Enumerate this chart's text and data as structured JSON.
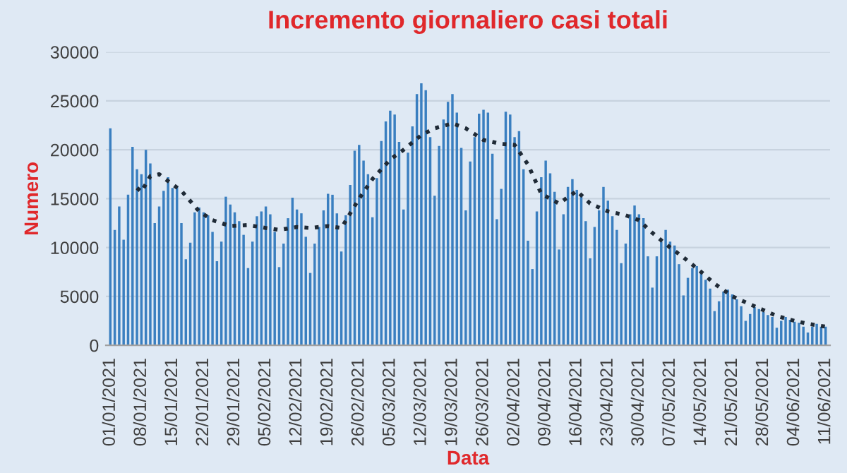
{
  "chart_data": {
    "type": "bar",
    "title": "Incremento giornaliero casi totali",
    "xlabel": "Data",
    "ylabel": "Numero",
    "x": [
      "2021-01-01",
      "2021-01-02",
      "2021-01-03",
      "2021-01-04",
      "2021-01-05",
      "2021-01-06",
      "2021-01-07",
      "2021-01-08",
      "2021-01-09",
      "2021-01-10",
      "2021-01-11",
      "2021-01-12",
      "2021-01-13",
      "2021-01-14",
      "2021-01-15",
      "2021-01-16",
      "2021-01-17",
      "2021-01-18",
      "2021-01-19",
      "2021-01-20",
      "2021-01-21",
      "2021-01-22",
      "2021-01-23",
      "2021-01-24",
      "2021-01-25",
      "2021-01-26",
      "2021-01-27",
      "2021-01-28",
      "2021-01-29",
      "2021-01-30",
      "2021-01-31",
      "2021-02-01",
      "2021-02-02",
      "2021-02-03",
      "2021-02-04",
      "2021-02-05",
      "2021-02-06",
      "2021-02-07",
      "2021-02-08",
      "2021-02-09",
      "2021-02-10",
      "2021-02-11",
      "2021-02-12",
      "2021-02-13",
      "2021-02-14",
      "2021-02-15",
      "2021-02-16",
      "2021-02-17",
      "2021-02-18",
      "2021-02-19",
      "2021-02-20",
      "2021-02-21",
      "2021-02-22",
      "2021-02-23",
      "2021-02-24",
      "2021-02-25",
      "2021-02-26",
      "2021-02-27",
      "2021-02-28",
      "2021-03-01",
      "2021-03-02",
      "2021-03-03",
      "2021-03-04",
      "2021-03-05",
      "2021-03-06",
      "2021-03-07",
      "2021-03-08",
      "2021-03-09",
      "2021-03-10",
      "2021-03-11",
      "2021-03-12",
      "2021-03-13",
      "2021-03-14",
      "2021-03-15",
      "2021-03-16",
      "2021-03-17",
      "2021-03-18",
      "2021-03-19",
      "2021-03-20",
      "2021-03-21",
      "2021-03-22",
      "2021-03-23",
      "2021-03-24",
      "2021-03-25",
      "2021-03-26",
      "2021-03-27",
      "2021-03-28",
      "2021-03-29",
      "2021-03-30",
      "2021-03-31",
      "2021-04-01",
      "2021-04-02",
      "2021-04-03",
      "2021-04-04",
      "2021-04-05",
      "2021-04-06",
      "2021-04-07",
      "2021-04-08",
      "2021-04-09",
      "2021-04-10",
      "2021-04-11",
      "2021-04-12",
      "2021-04-13",
      "2021-04-14",
      "2021-04-15",
      "2021-04-16",
      "2021-04-17",
      "2021-04-18",
      "2021-04-19",
      "2021-04-20",
      "2021-04-21",
      "2021-04-22",
      "2021-04-23",
      "2021-04-24",
      "2021-04-25",
      "2021-04-26",
      "2021-04-27",
      "2021-04-28",
      "2021-04-29",
      "2021-04-30",
      "2021-05-01",
      "2021-05-02",
      "2021-05-03",
      "2021-05-04",
      "2021-05-05",
      "2021-05-06",
      "2021-05-07",
      "2021-05-08",
      "2021-05-09",
      "2021-05-10",
      "2021-05-11",
      "2021-05-12",
      "2021-05-13",
      "2021-05-14",
      "2021-05-15",
      "2021-05-16",
      "2021-05-17",
      "2021-05-18",
      "2021-05-19",
      "2021-05-20",
      "2021-05-21",
      "2021-05-22",
      "2021-05-23",
      "2021-05-24",
      "2021-05-25",
      "2021-05-26",
      "2021-05-27",
      "2021-05-28",
      "2021-05-29",
      "2021-05-30",
      "2021-05-31",
      "2021-06-01",
      "2021-06-02",
      "2021-06-03",
      "2021-06-04",
      "2021-06-05",
      "2021-06-06",
      "2021-06-07",
      "2021-06-08",
      "2021-06-09",
      "2021-06-10",
      "2021-06-11"
    ],
    "series": [
      {
        "color": "#3a7fc0",
        "values": [
          22200,
          11800,
          14200,
          10800,
          15400,
          20300,
          18000,
          17500,
          20000,
          18600,
          12500,
          14200,
          15800,
          17200,
          16100,
          16300,
          12500,
          8800,
          10500,
          13600,
          14100,
          13600,
          13300,
          11600,
          8600,
          10600,
          15200,
          14400,
          13600,
          12700,
          11300,
          7900,
          10600,
          13200,
          13700,
          14200,
          13400,
          11600,
          8000,
          10400,
          13000,
          15100,
          13900,
          13500,
          11100,
          7400,
          10400,
          12100,
          13800,
          15500,
          15400,
          13500,
          9600,
          13300,
          16400,
          19900,
          20500,
          18900,
          17500,
          13100,
          17100,
          20900,
          22900,
          24000,
          23600,
          20800,
          13900,
          19700,
          22400,
          25700,
          26800,
          26100,
          21300,
          15300,
          20400,
          23100,
          24900,
          25700,
          23800,
          20200,
          13800,
          18800,
          21300,
          23700,
          24100,
          23800,
          19600,
          12900,
          16000,
          23900,
          23600,
          21300,
          21900,
          18000,
          10700,
          7800,
          13700,
          17200,
          18900,
          17600,
          15700,
          9800,
          13400,
          16200,
          17000,
          15900,
          15400,
          12700,
          8900,
          12100,
          13800,
          16200,
          14800,
          13200,
          11800,
          8400,
          10400,
          13400,
          14300,
          13400,
          13000,
          9100,
          5900,
          9100,
          10600,
          11800,
          10600,
          10200,
          8300,
          5100,
          6900,
          7900,
          8100,
          7600,
          6700,
          5800,
          3500,
          4500,
          5500,
          5700,
          5200,
          4700,
          4000,
          2500,
          3200,
          3900,
          3700,
          3400,
          3100,
          2900,
          1800,
          2500,
          2900,
          2600,
          2400,
          2300,
          1900,
          1300,
          1900,
          2200,
          1900,
          1900
        ]
      },
      {
        "type": "line",
        "color": "#1f2a36",
        "line_style": "dotted",
        "marker": "none",
        "x": [
          "2021-01-07",
          "2021-01-08",
          "2021-01-10",
          "2021-01-12",
          "2021-01-14",
          "2021-01-17",
          "2021-01-21",
          "2021-01-24",
          "2021-01-28",
          "2021-02-01",
          "2021-02-05",
          "2021-02-08",
          "2021-02-12",
          "2021-02-15",
          "2021-02-19",
          "2021-02-22",
          "2021-02-26",
          "2021-03-01",
          "2021-03-05",
          "2021-03-08",
          "2021-03-12",
          "2021-03-15",
          "2021-03-19",
          "2021-03-22",
          "2021-03-26",
          "2021-03-30",
          "2021-04-02",
          "2021-04-05",
          "2021-04-08",
          "2021-04-10",
          "2021-04-12",
          "2021-04-16",
          "2021-04-19",
          "2021-04-23",
          "2021-04-27",
          "2021-04-30",
          "2021-05-03",
          "2021-05-07",
          "2021-05-10",
          "2021-05-14",
          "2021-05-17",
          "2021-05-21",
          "2021-05-24",
          "2021-05-28",
          "2021-05-31",
          "2021-06-04",
          "2021-06-07",
          "2021-06-11"
        ],
        "values": [
          16100,
          15700,
          17300,
          17500,
          16800,
          15800,
          13700,
          12800,
          12200,
          12300,
          12000,
          11800,
          12100,
          12000,
          12200,
          12000,
          15000,
          17000,
          19000,
          20000,
          21500,
          22200,
          22700,
          22200,
          21000,
          20600,
          20500,
          18500,
          15500,
          15000,
          14500,
          15800,
          14500,
          13700,
          13300,
          12800,
          11500,
          10000,
          9000,
          7500,
          6300,
          5000,
          4400,
          3600,
          3000,
          2500,
          2200,
          1900
        ]
      }
    ],
    "ylim": [
      0,
      30000
    ],
    "yticks": [
      0,
      5000,
      10000,
      15000,
      20000,
      25000,
      30000
    ],
    "xlim": [
      "2020-12-31",
      "2021-06-12"
    ],
    "xticks": [
      {
        "value": "2021-01-01",
        "label": "01/01/2021"
      },
      {
        "value": "2021-01-08",
        "label": "08/01/2021"
      },
      {
        "value": "2021-01-15",
        "label": "15/01/2021"
      },
      {
        "value": "2021-01-22",
        "label": "22/01/2021"
      },
      {
        "value": "2021-01-29",
        "label": "29/01/2021"
      },
      {
        "value": "2021-02-05",
        "label": "05/02/2021"
      },
      {
        "value": "2021-02-12",
        "label": "12/02/2021"
      },
      {
        "value": "2021-02-19",
        "label": "19/02/2021"
      },
      {
        "value": "2021-02-26",
        "label": "26/02/2021"
      },
      {
        "value": "2021-03-05",
        "label": "05/03/2021"
      },
      {
        "value": "2021-03-12",
        "label": "12/03/2021"
      },
      {
        "value": "2021-03-19",
        "label": "19/03/2021"
      },
      {
        "value": "2021-03-26",
        "label": "26/03/2021"
      },
      {
        "value": "2021-04-02",
        "label": "02/04/2021"
      },
      {
        "value": "2021-04-09",
        "label": "09/04/2021"
      },
      {
        "value": "2021-04-16",
        "label": "16/04/2021"
      },
      {
        "value": "2021-04-23",
        "label": "23/04/2021"
      },
      {
        "value": "2021-04-30",
        "label": "30/04/2021"
      },
      {
        "value": "2021-05-07",
        "label": "07/05/2021"
      },
      {
        "value": "2021-05-14",
        "label": "14/05/2021"
      },
      {
        "value": "2021-05-21",
        "label": "21/05/2021"
      },
      {
        "value": "2021-05-28",
        "label": "28/05/2021"
      },
      {
        "value": "2021-06-04",
        "label": "04/06/2021"
      },
      {
        "value": "2021-06-11",
        "label": "11/06/2021"
      }
    ],
    "grid": "y",
    "legend": false
  }
}
